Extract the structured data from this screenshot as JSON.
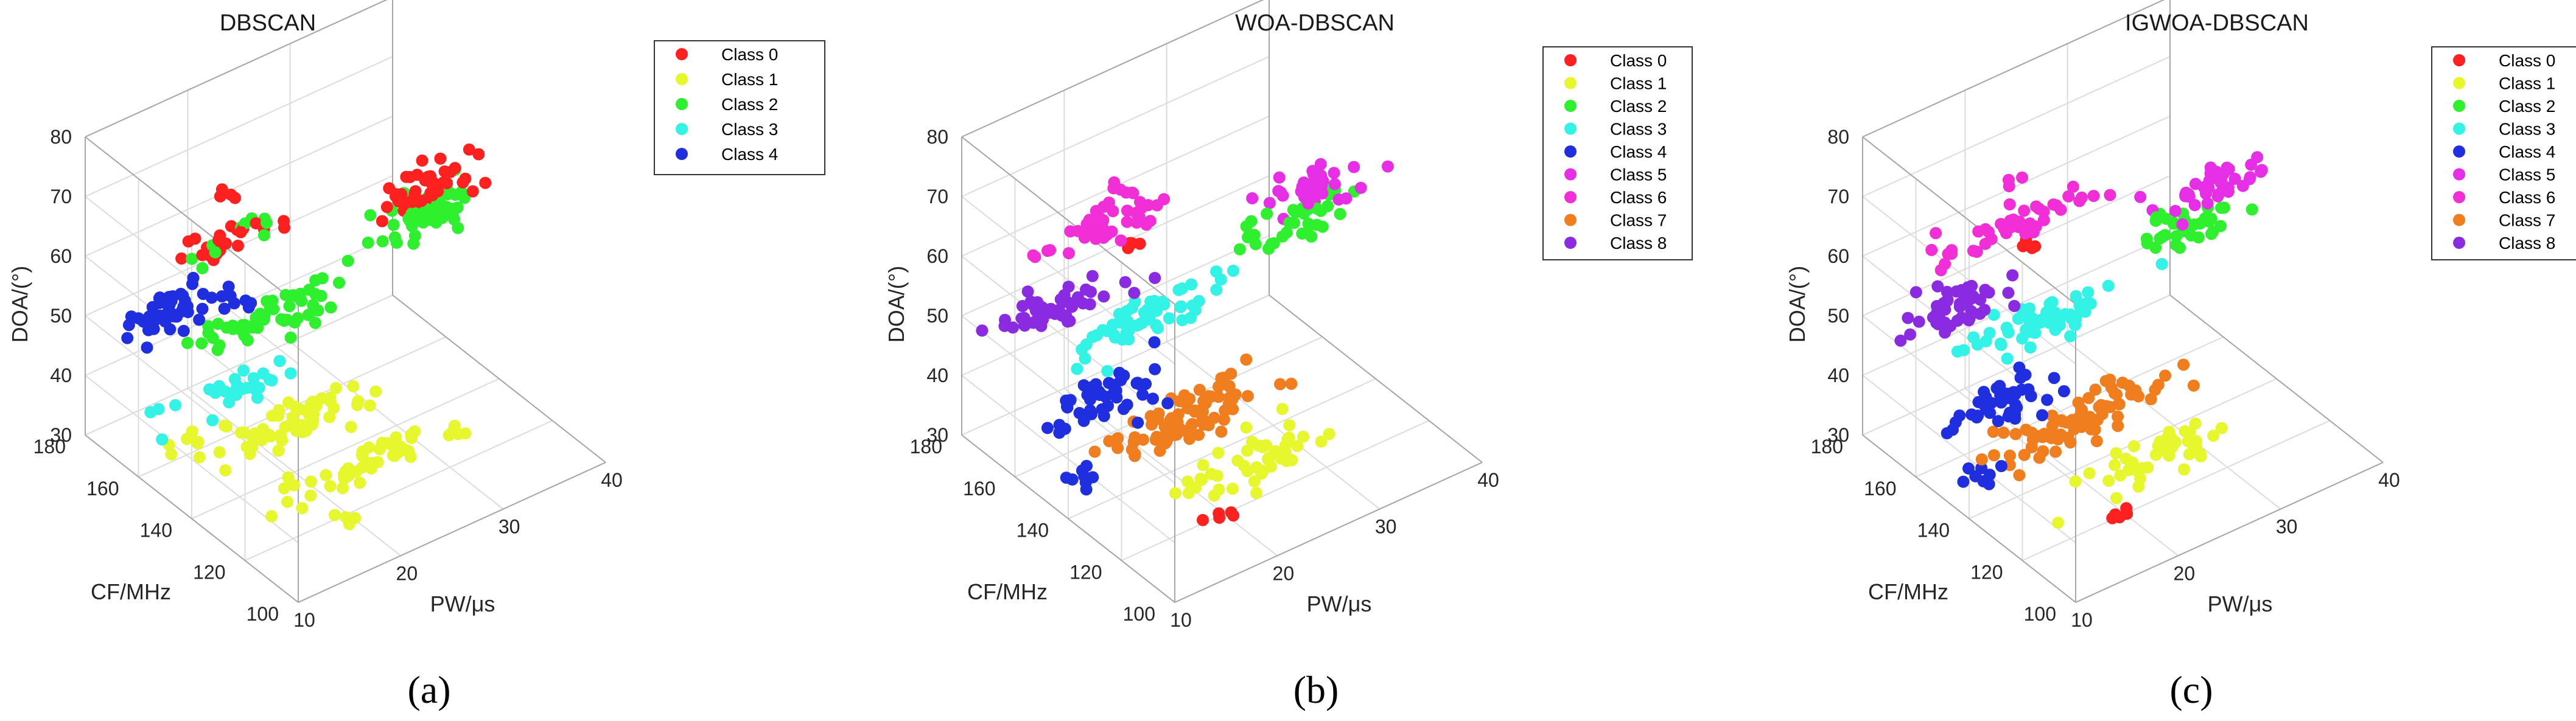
{
  "chart_data": [
    {
      "type": "scatter3d",
      "title": "DBSCAN",
      "caption": "(a)",
      "xlabel": "PW/μs",
      "ylabel": "CF/MHz",
      "zlabel": "DOA/(°)",
      "xlim": [
        10,
        40
      ],
      "ylim": [
        100,
        180
      ],
      "zlim": [
        30,
        80
      ],
      "xticks": [
        "10",
        "20",
        "30",
        "40"
      ],
      "yticks": [
        "100",
        "120",
        "140",
        "160",
        "180"
      ],
      "zticks": [
        "30",
        "40",
        "50",
        "60",
        "70",
        "80"
      ],
      "legend": [
        "Class 0",
        "Class 1",
        "Class 2",
        "Class 3",
        "Class 4"
      ],
      "colors": [
        "#ff2020",
        "#e6f72e",
        "#2ef02e",
        "#33f2e6",
        "#1f2fe0"
      ],
      "clusters": [
        {
          "cls": 2,
          "x": 35,
          "y": 150,
          "z": 58,
          "n": 55,
          "sx": 2.6,
          "sy": 3,
          "sz": 1.2
        },
        {
          "cls": 0,
          "x": 36,
          "y": 152,
          "z": 61,
          "n": 40,
          "sx": 2.2,
          "sy": 3,
          "sz": 1.2
        },
        {
          "cls": 0,
          "x": 19,
          "y": 160,
          "z": 62,
          "n": 22,
          "sx": 3,
          "sy": 2,
          "sz": 1.3
        },
        {
          "cls": 0,
          "x": 20,
          "y": 165,
          "z": 68,
          "n": 4,
          "sx": 0.6,
          "sy": 1,
          "sz": 0.5
        },
        {
          "cls": 2,
          "x": 19,
          "y": 160,
          "z": 63,
          "n": 10,
          "sx": 3,
          "sy": 2,
          "sz": 1.2
        },
        {
          "cls": 4,
          "x": 13,
          "y": 157,
          "z": 57,
          "n": 48,
          "sx": 2.8,
          "sy": 3,
          "sz": 1.2
        },
        {
          "cls": 4,
          "x": 19,
          "y": 155,
          "z": 54,
          "n": 4,
          "sx": 0.4,
          "sy": 1,
          "sz": 0.4
        },
        {
          "cls": 2,
          "x": 20,
          "y": 150,
          "z": 52,
          "n": 55,
          "sx": 3.5,
          "sy": 3,
          "sz": 1.2
        },
        {
          "cls": 3,
          "x": 15,
          "y": 145,
          "z": 45,
          "n": 28,
          "sx": 3,
          "sy": 3,
          "sz": 1.2
        },
        {
          "cls": 1,
          "x": 12,
          "y": 150,
          "z": 38,
          "n": 8,
          "sx": 1,
          "sy": 2,
          "sz": 0.8
        },
        {
          "cls": 1,
          "x": 20,
          "y": 140,
          "z": 38,
          "n": 60,
          "sx": 4,
          "sy": 3,
          "sz": 1.2
        },
        {
          "cls": 1,
          "x": 22,
          "y": 120,
          "z": 37,
          "n": 50,
          "sx": 4,
          "sy": 3,
          "sz": 1.2
        },
        {
          "cls": 1,
          "x": 17,
          "y": 110,
          "z": 36,
          "n": 4,
          "sx": 1,
          "sy": 1,
          "sz": 0.5
        }
      ]
    },
    {
      "type": "scatter3d",
      "title": "WOA-DBSCAN",
      "caption": "(b)",
      "xlabel": "PW/μs",
      "ylabel": "CF/MHz",
      "zlabel": "DOA/(°)",
      "xlim": [
        10,
        40
      ],
      "ylim": [
        100,
        180
      ],
      "zlim": [
        30,
        80
      ],
      "xticks": [
        "10",
        "20",
        "30",
        "40"
      ],
      "yticks": [
        "100",
        "120",
        "140",
        "160",
        "180"
      ],
      "zticks": [
        "30",
        "40",
        "50",
        "60",
        "70",
        "80"
      ],
      "legend": [
        "Class 0",
        "Class 1",
        "Class 2",
        "Class 3",
        "Class 4",
        "Class 5",
        "Class 6",
        "Class 7",
        "Class 8"
      ],
      "colors": [
        "#ff2020",
        "#e6f72e",
        "#2ef02e",
        "#33f2e6",
        "#1f2fe0",
        "#e62ee6",
        "#f22ed6",
        "#f07d1e",
        "#8a2be2"
      ],
      "clusters": [
        {
          "cls": 2,
          "x": 34,
          "y": 150,
          "z": 57,
          "n": 35,
          "sx": 2.4,
          "sy": 3,
          "sz": 1.1
        },
        {
          "cls": 5,
          "x": 37,
          "y": 152,
          "z": 60,
          "n": 40,
          "sx": 2.2,
          "sy": 3,
          "sz": 1.1
        },
        {
          "cls": 6,
          "x": 19,
          "y": 160,
          "z": 65,
          "n": 45,
          "sx": 3.4,
          "sy": 2.5,
          "sz": 1.3
        },
        {
          "cls": 6,
          "x": 21,
          "y": 165,
          "z": 69,
          "n": 3,
          "sx": 0.5,
          "sy": 1,
          "sz": 0.4
        },
        {
          "cls": 0,
          "x": 21,
          "y": 160,
          "z": 60,
          "n": 4,
          "sx": 0.4,
          "sy": 1,
          "sz": 0.4
        },
        {
          "cls": 8,
          "x": 13,
          "y": 157,
          "z": 57,
          "n": 48,
          "sx": 2.8,
          "sy": 3,
          "sz": 1.2
        },
        {
          "cls": 3,
          "x": 20,
          "y": 150,
          "z": 52,
          "n": 60,
          "sx": 3.6,
          "sy": 3,
          "sz": 1.2
        },
        {
          "cls": 4,
          "x": 15,
          "y": 145,
          "z": 44,
          "n": 45,
          "sx": 2.6,
          "sy": 3,
          "sz": 1.3
        },
        {
          "cls": 4,
          "x": 12,
          "y": 140,
          "z": 36,
          "n": 8,
          "sx": 0.8,
          "sy": 2,
          "sz": 0.8
        },
        {
          "cls": 7,
          "x": 21,
          "y": 140,
          "z": 38,
          "n": 80,
          "sx": 4,
          "sy": 3,
          "sz": 1.3
        },
        {
          "cls": 1,
          "x": 23,
          "y": 120,
          "z": 37,
          "n": 45,
          "sx": 4,
          "sy": 3,
          "sz": 1.2
        },
        {
          "cls": 0,
          "x": 17,
          "y": 110,
          "z": 36,
          "n": 5,
          "sx": 1,
          "sy": 1,
          "sz": 0.5
        }
      ]
    },
    {
      "type": "scatter3d",
      "title": "IGWOA-DBSCAN",
      "caption": "(c)",
      "xlabel": "PW/μs",
      "ylabel": "CF/MHz",
      "zlabel": "DOA/(°)",
      "xlim": [
        10,
        40
      ],
      "ylim": [
        100,
        180
      ],
      "zlim": [
        30,
        80
      ],
      "xticks": [
        "10",
        "20",
        "30",
        "40"
      ],
      "yticks": [
        "100",
        "120",
        "140",
        "160",
        "180"
      ],
      "zticks": [
        "30",
        "40",
        "50",
        "60",
        "70",
        "80"
      ],
      "legend": [
        "Class 0",
        "Class 1",
        "Class 2",
        "Class 3",
        "Class 4",
        "Class 5",
        "Class 6",
        "Class 7",
        "Class 8"
      ],
      "colors": [
        "#ff2020",
        "#e6f72e",
        "#2ef02e",
        "#33f2e6",
        "#1f2fe0",
        "#e62ee6",
        "#f22ed6",
        "#f07d1e",
        "#8a2be2"
      ],
      "clusters": [
        {
          "cls": 2,
          "x": 34,
          "y": 150,
          "z": 57,
          "n": 35,
          "sx": 2.4,
          "sy": 3,
          "sz": 1.1
        },
        {
          "cls": 5,
          "x": 37,
          "y": 152,
          "z": 60,
          "n": 40,
          "sx": 2.2,
          "sy": 3,
          "sz": 1.1
        },
        {
          "cls": 6,
          "x": 19,
          "y": 160,
          "z": 65,
          "n": 45,
          "sx": 3.4,
          "sy": 2.5,
          "sz": 1.3
        },
        {
          "cls": 6,
          "x": 21,
          "y": 165,
          "z": 69,
          "n": 3,
          "sx": 0.5,
          "sy": 1,
          "sz": 0.4
        },
        {
          "cls": 0,
          "x": 21,
          "y": 160,
          "z": 60,
          "n": 4,
          "sx": 0.4,
          "sy": 1,
          "sz": 0.4
        },
        {
          "cls": 8,
          "x": 13,
          "y": 157,
          "z": 57,
          "n": 48,
          "sx": 2.8,
          "sy": 3,
          "sz": 1.2
        },
        {
          "cls": 3,
          "x": 20,
          "y": 150,
          "z": 52,
          "n": 60,
          "sx": 3.6,
          "sy": 3,
          "sz": 1.2
        },
        {
          "cls": 4,
          "x": 15,
          "y": 145,
          "z": 44,
          "n": 45,
          "sx": 2.6,
          "sy": 3,
          "sz": 1.3
        },
        {
          "cls": 4,
          "x": 12,
          "y": 140,
          "z": 36,
          "n": 8,
          "sx": 0.8,
          "sy": 2,
          "sz": 0.8
        },
        {
          "cls": 7,
          "x": 21,
          "y": 140,
          "z": 38,
          "n": 80,
          "sx": 4,
          "sy": 3,
          "sz": 1.3
        },
        {
          "cls": 1,
          "x": 23,
          "y": 120,
          "z": 37,
          "n": 45,
          "sx": 4,
          "sy": 3,
          "sz": 1.2
        },
        {
          "cls": 0,
          "x": 17,
          "y": 110,
          "z": 36,
          "n": 5,
          "sx": 1,
          "sy": 1,
          "sz": 0.5
        }
      ]
    }
  ]
}
